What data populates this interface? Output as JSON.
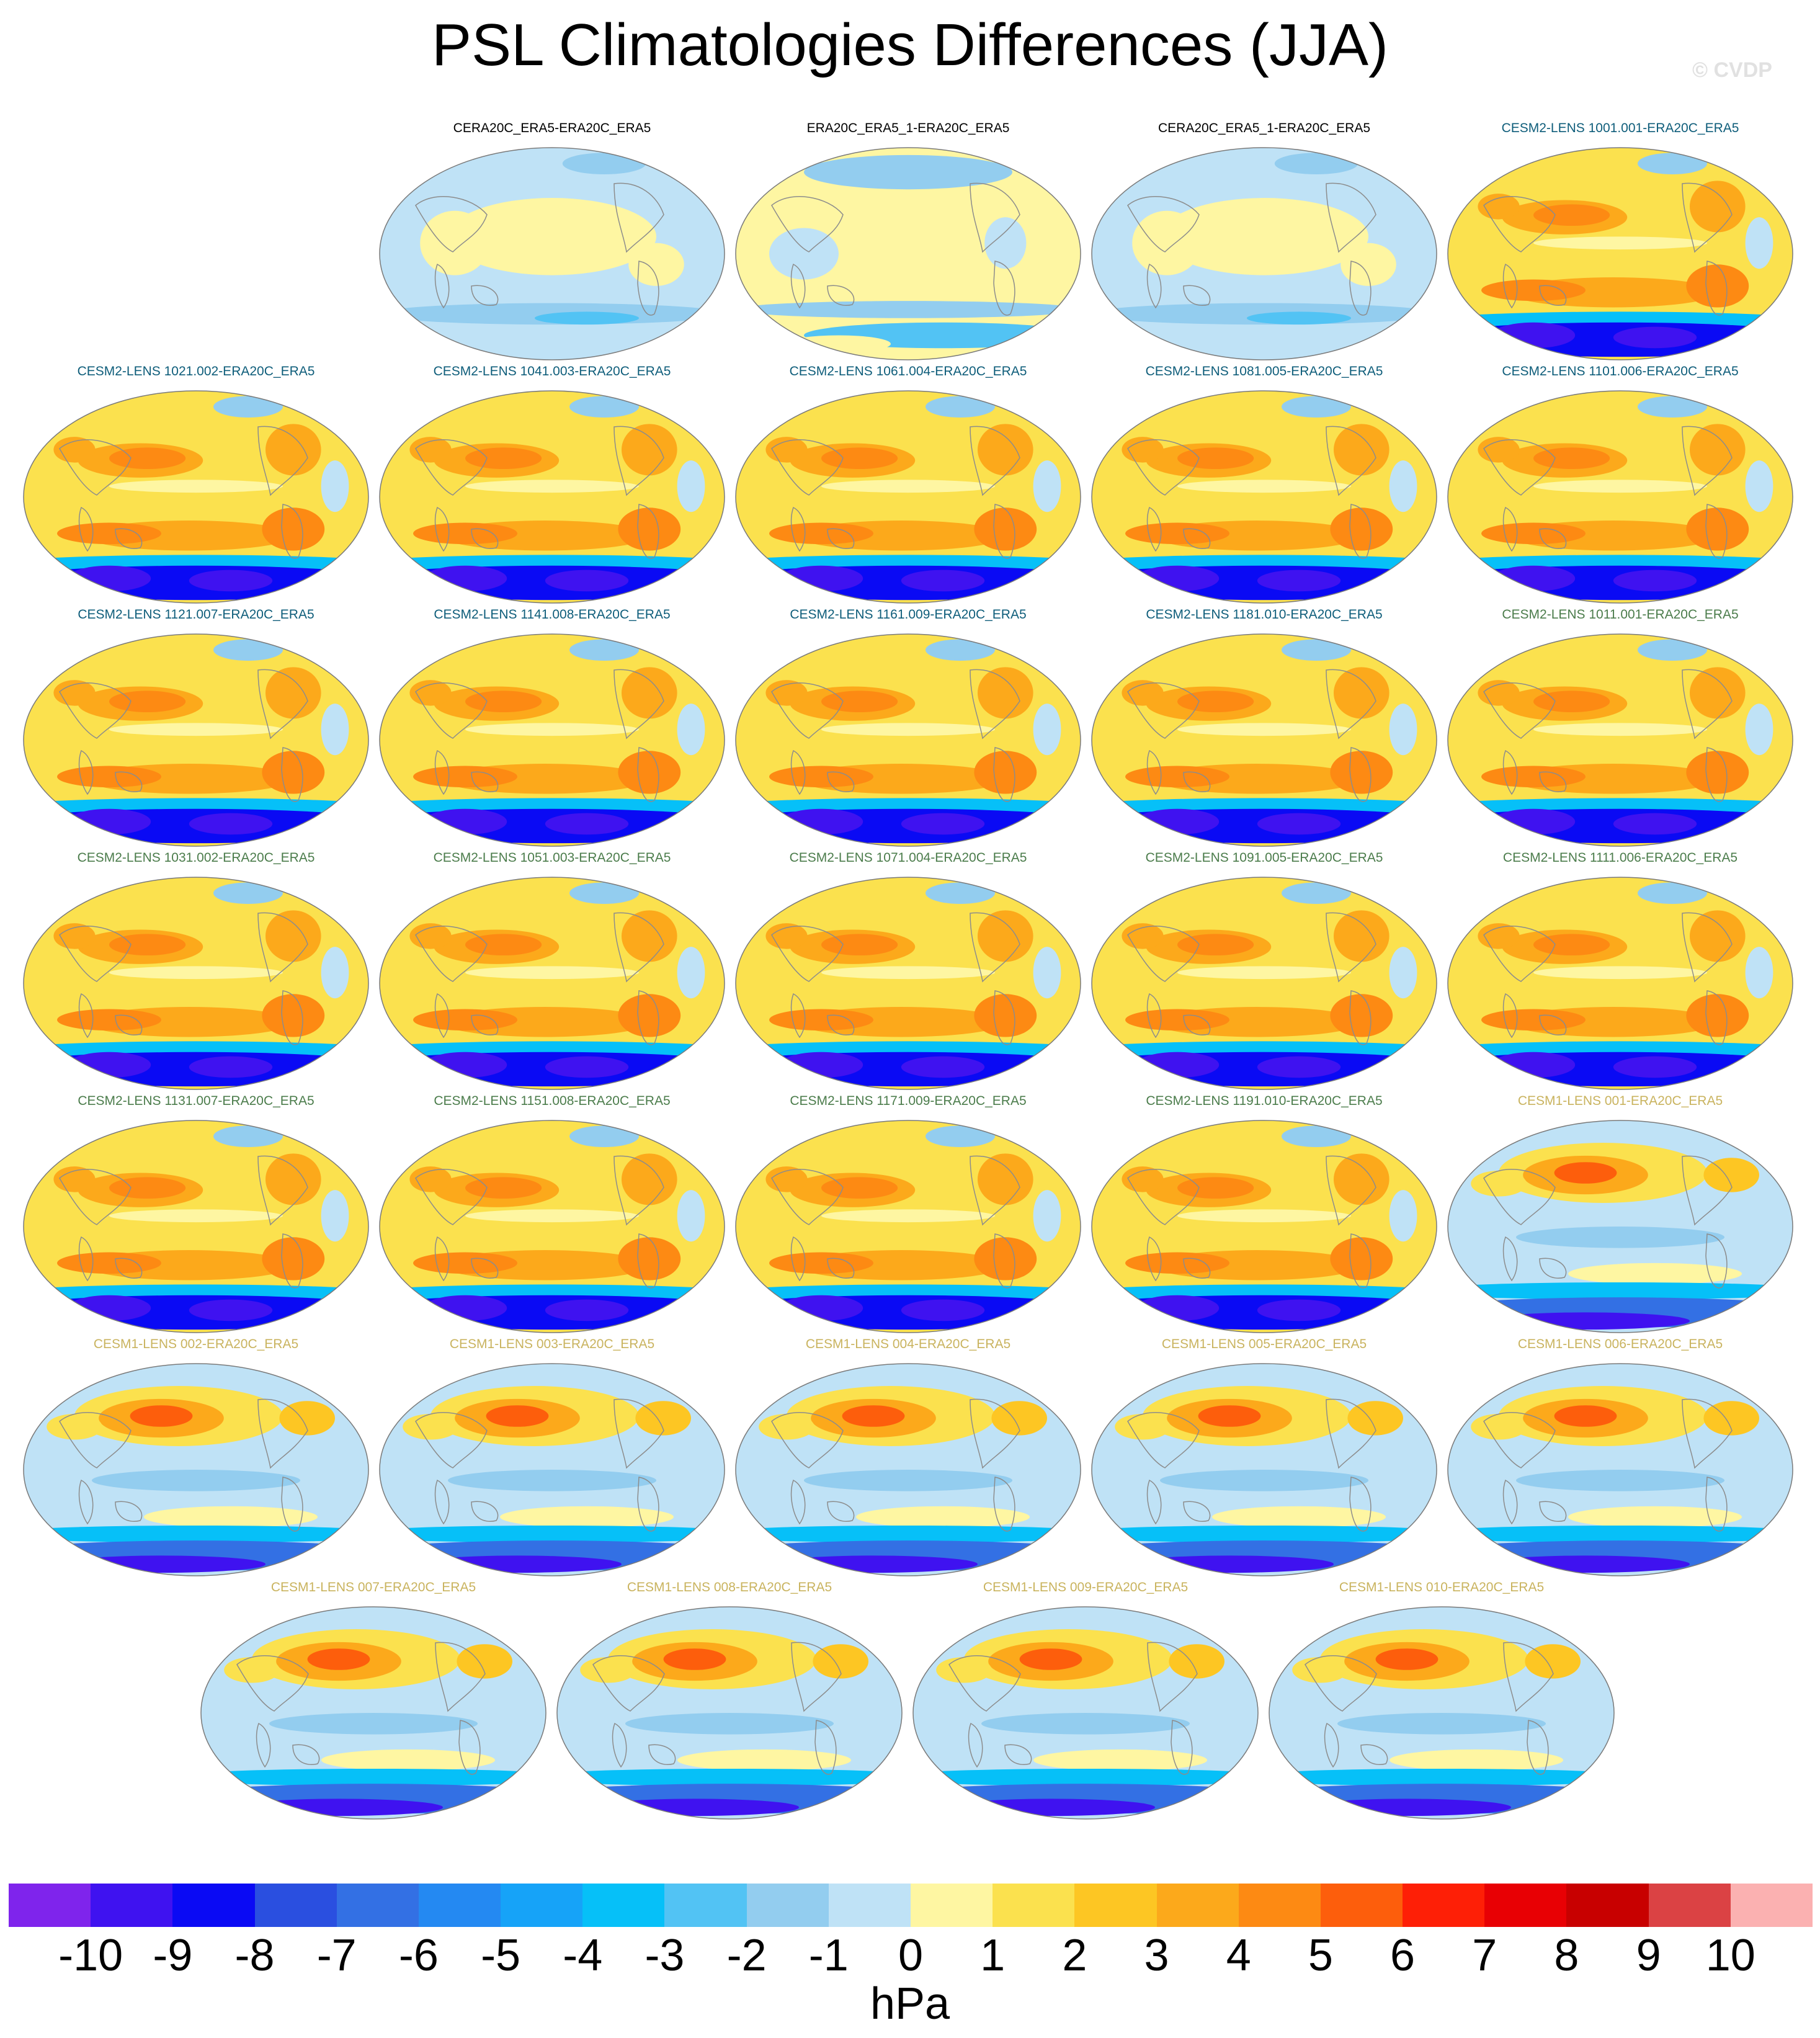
{
  "title": "PSL Climatologies Differences (JJA)",
  "credit": "© CVDP",
  "colors": {
    "obs": "#000000",
    "cesm2a": "#0e5d7a",
    "cesm2b": "#4b7c4b",
    "cesm1": "#c9b35e",
    "land": "#8c8c8c"
  },
  "panels": [
    {
      "label": "CERA20C_ERA5-ERA20C_ERA5",
      "group": "obs",
      "pattern": "obs1"
    },
    {
      "label": "ERA20C_ERA5_1-ERA20C_ERA5",
      "group": "obs",
      "pattern": "obs2"
    },
    {
      "label": "CERA20C_ERA5_1-ERA20C_ERA5",
      "group": "obs",
      "pattern": "obs1"
    },
    {
      "label": "CESM2-LENS 1001.001-ERA20C_ERA5",
      "group": "cesm2a",
      "pattern": "c2"
    },
    {
      "label": "CESM2-LENS 1021.002-ERA20C_ERA5",
      "group": "cesm2a",
      "pattern": "c2"
    },
    {
      "label": "CESM2-LENS 1041.003-ERA20C_ERA5",
      "group": "cesm2a",
      "pattern": "c2"
    },
    {
      "label": "CESM2-LENS 1061.004-ERA20C_ERA5",
      "group": "cesm2a",
      "pattern": "c2"
    },
    {
      "label": "CESM2-LENS 1081.005-ERA20C_ERA5",
      "group": "cesm2a",
      "pattern": "c2"
    },
    {
      "label": "CESM2-LENS 1101.006-ERA20C_ERA5",
      "group": "cesm2a",
      "pattern": "c2"
    },
    {
      "label": "CESM2-LENS 1121.007-ERA20C_ERA5",
      "group": "cesm2a",
      "pattern": "c2"
    },
    {
      "label": "CESM2-LENS 1141.008-ERA20C_ERA5",
      "group": "cesm2a",
      "pattern": "c2"
    },
    {
      "label": "CESM2-LENS 1161.009-ERA20C_ERA5",
      "group": "cesm2a",
      "pattern": "c2"
    },
    {
      "label": "CESM2-LENS 1181.010-ERA20C_ERA5",
      "group": "cesm2a",
      "pattern": "c2"
    },
    {
      "label": "CESM2-LENS 1011.001-ERA20C_ERA5",
      "group": "cesm2b",
      "pattern": "c2"
    },
    {
      "label": "CESM2-LENS 1031.002-ERA20C_ERA5",
      "group": "cesm2b",
      "pattern": "c2"
    },
    {
      "label": "CESM2-LENS 1051.003-ERA20C_ERA5",
      "group": "cesm2b",
      "pattern": "c2"
    },
    {
      "label": "CESM2-LENS 1071.004-ERA20C_ERA5",
      "group": "cesm2b",
      "pattern": "c2"
    },
    {
      "label": "CESM2-LENS 1091.005-ERA20C_ERA5",
      "group": "cesm2b",
      "pattern": "c2"
    },
    {
      "label": "CESM2-LENS 1111.006-ERA20C_ERA5",
      "group": "cesm2b",
      "pattern": "c2"
    },
    {
      "label": "CESM2-LENS 1131.007-ERA20C_ERA5",
      "group": "cesm2b",
      "pattern": "c2"
    },
    {
      "label": "CESM2-LENS 1151.008-ERA20C_ERA5",
      "group": "cesm2b",
      "pattern": "c2"
    },
    {
      "label": "CESM2-LENS 1171.009-ERA20C_ERA5",
      "group": "cesm2b",
      "pattern": "c2"
    },
    {
      "label": "CESM2-LENS 1191.010-ERA20C_ERA5",
      "group": "cesm2b",
      "pattern": "c2"
    },
    {
      "label": "CESM1-LENS 001-ERA20C_ERA5",
      "group": "cesm1",
      "pattern": "c1"
    },
    {
      "label": "CESM1-LENS 002-ERA20C_ERA5",
      "group": "cesm1",
      "pattern": "c1"
    },
    {
      "label": "CESM1-LENS 003-ERA20C_ERA5",
      "group": "cesm1",
      "pattern": "c1"
    },
    {
      "label": "CESM1-LENS 004-ERA20C_ERA5",
      "group": "cesm1",
      "pattern": "c1"
    },
    {
      "label": "CESM1-LENS 005-ERA20C_ERA5",
      "group": "cesm1",
      "pattern": "c1"
    },
    {
      "label": "CESM1-LENS 006-ERA20C_ERA5",
      "group": "cesm1",
      "pattern": "c1"
    },
    {
      "label": "CESM1-LENS 007-ERA20C_ERA5",
      "group": "cesm1",
      "pattern": "c1"
    },
    {
      "label": "CESM1-LENS 008-ERA20C_ERA5",
      "group": "cesm1",
      "pattern": "c1"
    },
    {
      "label": "CESM1-LENS 009-ERA20C_ERA5",
      "group": "cesm1",
      "pattern": "c1"
    },
    {
      "label": "CESM1-LENS 010-ERA20C_ERA5",
      "group": "cesm1",
      "pattern": "c1"
    }
  ],
  "colorbar": {
    "units": "hPa",
    "ticks": [
      "-10",
      "-9",
      "-8",
      "-7",
      "-6",
      "-5",
      "-4",
      "-3",
      "-2",
      "-1",
      "0",
      "1",
      "2",
      "3",
      "4",
      "5",
      "6",
      "7",
      "8",
      "9",
      "10"
    ],
    "colors": [
      "#7f24ec",
      "#3f12f0",
      "#0a0af4",
      "#2a4fe0",
      "#3370e4",
      "#2489f2",
      "#16a3f8",
      "#06c0f8",
      "#52c3f4",
      "#93cdef",
      "#bfe2f6",
      "#fef6a2",
      "#fbe14e",
      "#fdc623",
      "#fca91b",
      "#fd8a13",
      "#fd5e0c",
      "#fe1f06",
      "#e80004",
      "#c80000",
      "#db4244",
      "#fbb1b1"
    ]
  }
}
